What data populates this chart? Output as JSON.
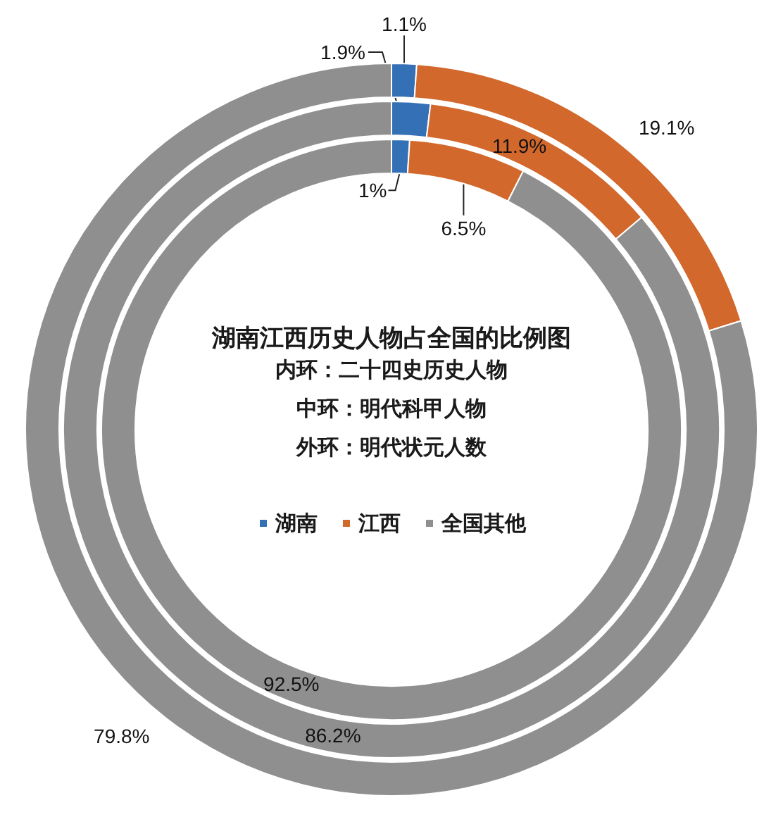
{
  "chart_data": [
    {
      "type": "donut",
      "title": "湖南江西历史人物占全国的比例图",
      "subtitle": "内环：二十四史历史人物",
      "categories": [
        "湖南",
        "江西",
        "全国其他"
      ],
      "colors": [
        "#3470b5",
        "#d2682c",
        "#8f8f8f"
      ],
      "values": [
        1,
        6.5,
        92.5
      ],
      "value_labels": [
        "1%",
        "6.5%",
        "92.5%"
      ],
      "legend": "center"
    },
    {
      "type": "donut",
      "subtitle": "中环：明代科甲人物",
      "categories": [
        null,
        null,
        null
      ],
      "colors": [
        "#3470b5",
        "#d2682c",
        "#8f8f8f"
      ],
      "values": [
        1.9,
        11.9,
        86.2
      ],
      "value_labels": [
        "1.9%",
        "11.9%",
        "86.2%"
      ]
    },
    {
      "type": "donut",
      "subtitle": "外环：明代状元人数",
      "categories": [
        null,
        null,
        null
      ],
      "colors": [
        "#3470b5",
        "#d2682c",
        "#8f8f8f"
      ],
      "values": [
        1.1,
        19.1,
        79.8
      ],
      "value_labels": [
        "1.1%",
        "19.1%",
        "79.8%"
      ]
    }
  ]
}
